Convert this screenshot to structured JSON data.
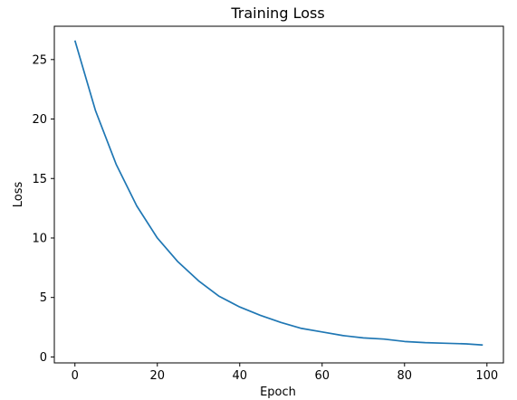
{
  "chart_data": {
    "type": "line",
    "title": "Training Loss",
    "xlabel": "Epoch",
    "ylabel": "Loss",
    "xlim": [
      -5,
      104
    ],
    "ylim": [
      -0.5,
      27.8
    ],
    "x_ticks": [
      0,
      20,
      40,
      60,
      80,
      100
    ],
    "y_ticks": [
      0,
      5,
      10,
      15,
      20,
      25
    ],
    "grid": false,
    "series": [
      {
        "color": "#1f77b4",
        "x": [
          0,
          5,
          10,
          15,
          20,
          25,
          30,
          35,
          40,
          45,
          50,
          55,
          60,
          65,
          70,
          75,
          80,
          85,
          90,
          95,
          99
        ],
        "y": [
          26.6,
          20.7,
          16.2,
          12.7,
          10.0,
          8.0,
          6.4,
          5.1,
          4.2,
          3.5,
          2.9,
          2.4,
          2.1,
          1.8,
          1.6,
          1.5,
          1.3,
          1.2,
          1.15,
          1.1,
          1.0
        ]
      }
    ]
  }
}
